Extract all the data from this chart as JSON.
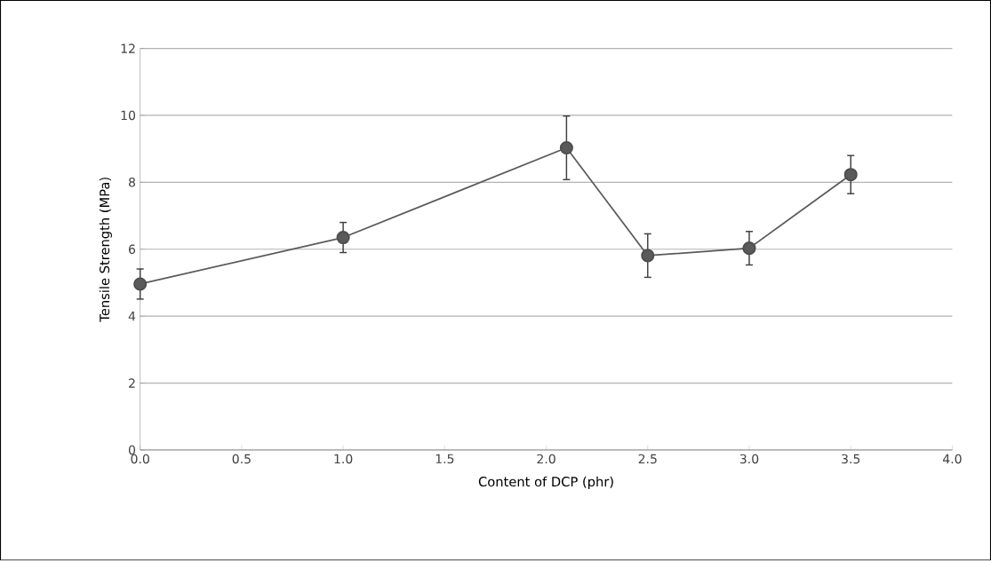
{
  "chart_data": {
    "type": "line",
    "xlabel": "Content of DCP (phr)",
    "ylabel": "Tensile Strength (MPa)",
    "x": [
      0.0,
      1.0,
      2.1,
      2.5,
      3.0,
      3.5
    ],
    "series": [
      {
        "color": "#5a5a5a",
        "values": [
          4.96,
          6.35,
          9.03,
          5.81,
          6.03,
          8.23
        ],
        "errors": [
          0.45,
          0.45,
          0.95,
          0.65,
          0.5,
          0.57
        ]
      }
    ],
    "xlim": [
      0,
      4
    ],
    "ylim": [
      0,
      12
    ],
    "xticks": [
      {
        "value": 0,
        "label": "0.0"
      },
      0.5,
      {
        "value": 1,
        "label": "1.0"
      },
      1.5,
      {
        "value": 2,
        "label": "2.0"
      },
      2.5,
      {
        "value": 3,
        "label": "3.0"
      },
      3.5,
      {
        "value": 4,
        "label": "4.0"
      }
    ],
    "yticks": [
      0,
      2,
      4,
      6,
      8,
      10,
      12
    ],
    "grid": "y",
    "marker": "circle",
    "line_style": "solid"
  }
}
